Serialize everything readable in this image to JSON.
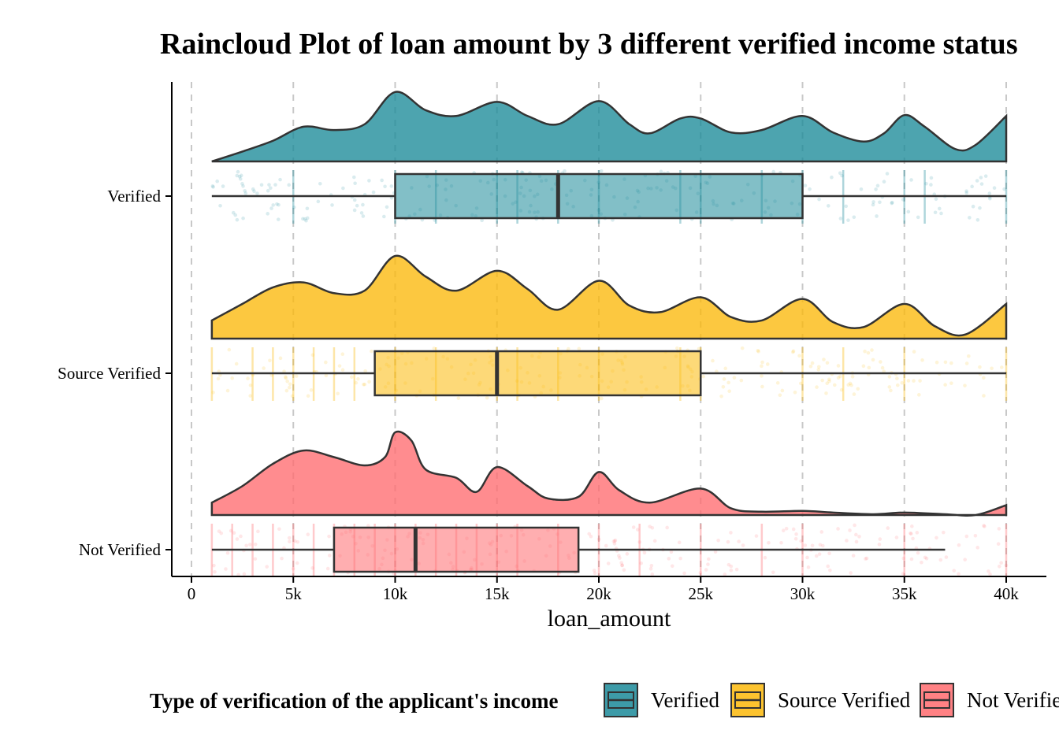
{
  "chart_data": {
    "type": "raincloud",
    "title": "Raincloud Plot of loan amount by 3 different verified income status",
    "xlabel": "loan_amount",
    "ylabel": "",
    "xlim": [
      0,
      40000
    ],
    "x_ticks": [
      {
        "value": 0,
        "label": "0"
      },
      {
        "value": 5000,
        "label": "5k"
      },
      {
        "value": 10000,
        "label": "10k"
      },
      {
        "value": 15000,
        "label": "15k"
      },
      {
        "value": 20000,
        "label": "20k"
      },
      {
        "value": 25000,
        "label": "25k"
      },
      {
        "value": 30000,
        "label": "30k"
      },
      {
        "value": 35000,
        "label": "35k"
      },
      {
        "value": 40000,
        "label": "40k"
      }
    ],
    "grid": "vertical dashed",
    "legend": {
      "title": "Type of verification of the applicant's income",
      "position": "bottom",
      "items": [
        "Verified",
        "Source Verified",
        "Not Verified"
      ]
    },
    "series": [
      {
        "name": "Verified",
        "color": "#1B8A99",
        "box": {
          "whisker_low": 1000,
          "q1": 10000,
          "median": 18000,
          "q3": 30000,
          "whisker_high": 40000
        },
        "density": [
          [
            1000,
            0.0
          ],
          [
            2500,
            0.12
          ],
          [
            4000,
            0.25
          ],
          [
            5500,
            0.42
          ],
          [
            7000,
            0.38
          ],
          [
            8500,
            0.45
          ],
          [
            10000,
            0.84
          ],
          [
            11500,
            0.62
          ],
          [
            13000,
            0.55
          ],
          [
            15000,
            0.72
          ],
          [
            16500,
            0.55
          ],
          [
            18000,
            0.45
          ],
          [
            20000,
            0.73
          ],
          [
            21500,
            0.45
          ],
          [
            22500,
            0.34
          ],
          [
            24000,
            0.52
          ],
          [
            25000,
            0.52
          ],
          [
            26500,
            0.35
          ],
          [
            28000,
            0.38
          ],
          [
            30000,
            0.55
          ],
          [
            31500,
            0.35
          ],
          [
            33000,
            0.24
          ],
          [
            34000,
            0.34
          ],
          [
            35000,
            0.56
          ],
          [
            36000,
            0.42
          ],
          [
            37500,
            0.15
          ],
          [
            38500,
            0.2
          ],
          [
            40000,
            0.55
          ]
        ],
        "strips": [
          5000,
          10000,
          12000,
          15000,
          16000,
          18000,
          20000,
          24000,
          25000,
          28000,
          30000,
          32000,
          35000,
          36000,
          40000
        ]
      },
      {
        "name": "Source Verified",
        "color": "#FBB90A",
        "box": {
          "whisker_low": 1000,
          "q1": 9000,
          "median": 15000,
          "q3": 25000,
          "whisker_high": 40000
        },
        "density": [
          [
            1000,
            0.22
          ],
          [
            2500,
            0.42
          ],
          [
            4000,
            0.62
          ],
          [
            5500,
            0.68
          ],
          [
            7000,
            0.55
          ],
          [
            8500,
            0.58
          ],
          [
            10000,
            1.0
          ],
          [
            11500,
            0.75
          ],
          [
            13000,
            0.58
          ],
          [
            15000,
            0.82
          ],
          [
            16500,
            0.6
          ],
          [
            18000,
            0.35
          ],
          [
            20000,
            0.7
          ],
          [
            21500,
            0.4
          ],
          [
            23000,
            0.32
          ],
          [
            25000,
            0.5
          ],
          [
            26500,
            0.26
          ],
          [
            28000,
            0.22
          ],
          [
            30000,
            0.48
          ],
          [
            31500,
            0.2
          ],
          [
            33000,
            0.14
          ],
          [
            35000,
            0.42
          ],
          [
            36500,
            0.15
          ],
          [
            38000,
            0.05
          ],
          [
            40000,
            0.42
          ]
        ],
        "strips": [
          1000,
          3000,
          4000,
          5000,
          6000,
          7000,
          8000,
          10000,
          12000,
          15000,
          16000,
          18000,
          20000,
          24000,
          25000,
          30000,
          32000,
          35000,
          40000
        ]
      },
      {
        "name": "Not Verified",
        "color": "#FF6B6F",
        "box": {
          "whisker_low": 1000,
          "q1": 7000,
          "median": 11000,
          "q3": 19000,
          "whisker_high": 37000
        },
        "density": [
          [
            1000,
            0.15
          ],
          [
            2500,
            0.35
          ],
          [
            4000,
            0.62
          ],
          [
            5500,
            0.78
          ],
          [
            7000,
            0.7
          ],
          [
            8500,
            0.6
          ],
          [
            9500,
            0.7
          ],
          [
            10000,
            1.0
          ],
          [
            10800,
            0.9
          ],
          [
            11500,
            0.55
          ],
          [
            13000,
            0.45
          ],
          [
            14000,
            0.28
          ],
          [
            15000,
            0.58
          ],
          [
            16500,
            0.35
          ],
          [
            17500,
            0.2
          ],
          [
            19000,
            0.22
          ],
          [
            20000,
            0.52
          ],
          [
            21000,
            0.3
          ],
          [
            22500,
            0.15
          ],
          [
            25000,
            0.32
          ],
          [
            26500,
            0.08
          ],
          [
            28000,
            0.04
          ],
          [
            30000,
            0.05
          ],
          [
            31500,
            0.03
          ],
          [
            33500,
            0.01
          ],
          [
            35000,
            0.03
          ],
          [
            37000,
            0.01
          ],
          [
            38500,
            0.0
          ],
          [
            40000,
            0.12
          ]
        ],
        "strips": [
          1000,
          2000,
          3000,
          4000,
          5000,
          6000,
          7000,
          8000,
          9000,
          10000,
          11000,
          12000,
          13000,
          14000,
          15000,
          16000,
          18000,
          20000,
          22000,
          25000,
          28000,
          30000,
          35000,
          40000
        ]
      }
    ]
  }
}
